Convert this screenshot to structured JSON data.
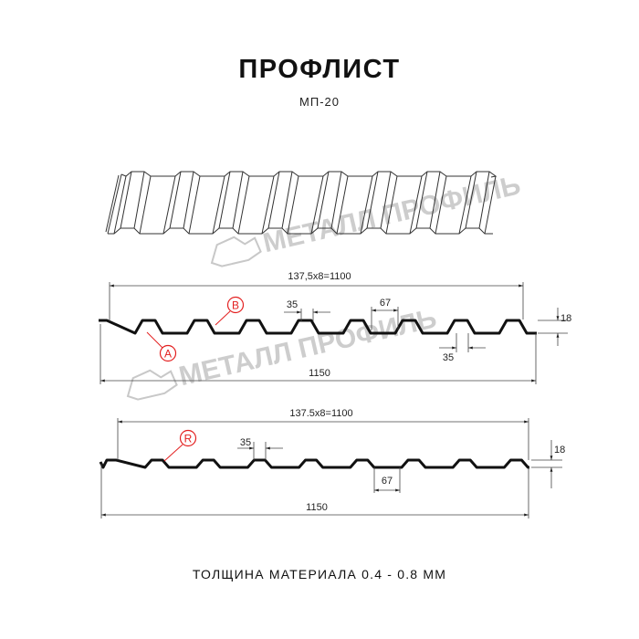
{
  "header": {
    "title": "ПРОФЛИСТ",
    "subtitle": "МП-20"
  },
  "watermark": {
    "text": "МЕТАЛЛ ПРОФИЛЬ",
    "icon": "metall-profil-logo-icon"
  },
  "profile_1": {
    "pitch_dim": "137,5x8=1100",
    "total_dim": "1150",
    "top_width_dim": "35",
    "bottom_width_dim": "67",
    "lower_width_dim": "35",
    "height_dim": "18",
    "marker_a": "A",
    "marker_b": "B"
  },
  "profile_2": {
    "pitch_dim": "137.5x8=1100",
    "total_dim": "1150",
    "top_width_dim": "35",
    "bottom_width_dim": "67",
    "height_dim": "18",
    "marker_r": "R"
  },
  "footer": {
    "thickness": "ТОЛЩИНА МАТЕРИАЛА 0.4 - 0.8 ММ"
  },
  "colors": {
    "marker": "#e32020",
    "line": "#111111",
    "watermark": "#bdbdbd"
  }
}
